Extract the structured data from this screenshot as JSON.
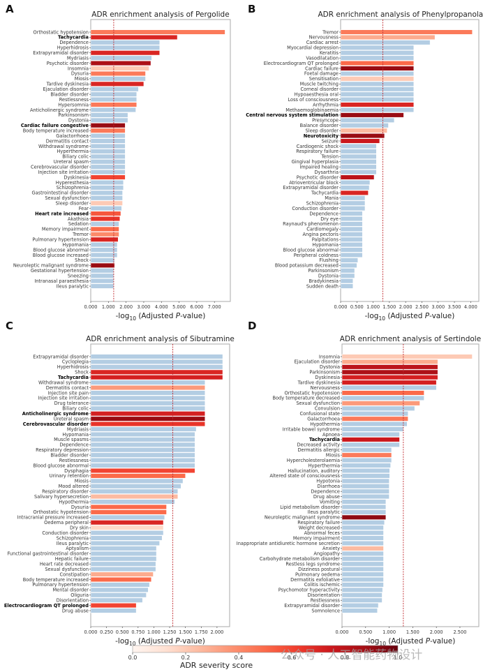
{
  "colorbar": {
    "label": "ADR severity score",
    "ticks": [
      "0.0",
      "0.2",
      "0.4",
      "0.6",
      "0.8",
      "1.0"
    ],
    "range": [
      0,
      1
    ],
    "cmap": "Reds"
  },
  "watermark": "公众号 · 人工智能药物设计",
  "chart_data": [
    {
      "panel_letter": "A",
      "type": "bar",
      "orientation": "horizontal",
      "title": "ADR enrichment analysis of Pergolide",
      "xlabel": "-log10 (Adjusted P-value)",
      "xlim": [
        0,
        7.9
      ],
      "xticks": [
        "0.000",
        "1.000",
        "2.000",
        "3.000",
        "4.000",
        "5.000",
        "6.000",
        "7.000"
      ],
      "xtick_values": [
        0,
        1,
        2,
        3,
        4,
        5,
        6,
        7
      ],
      "threshold": 1.3,
      "categories": [
        "Orthostatic hypotension",
        "Tachycardia",
        "Dependence",
        "Hyperhidrosis",
        "Extrapyramidal disorder",
        "Mydriasis",
        "Psychotic disorder",
        "Insomnia",
        "Dysuria",
        "Miosis",
        "Tardive dyskinesia",
        "Ejaculation disorder",
        "Bladder disorder",
        "Restlessness",
        "Hypersomnia",
        "Anticholinergic syndrome",
        "Parkinsonism",
        "Dystonia",
        "Cardiac failure congestive",
        "Body temperature increased",
        "Galactorrhoea",
        "Dermatitis contact",
        "Withdrawal syndrome",
        "Hyperthermia",
        "Biliary colic",
        "Ureteral spasm",
        "Cerebrovascular disorder",
        "Injection site irritation",
        "Dyskinesia",
        "Hyperesthesia",
        "Schizophrenia",
        "Gastrointestinal disorder",
        "Sexual dysfunction",
        "Sleep disorder",
        "Fear",
        "Heart rate increased",
        "Akathisia",
        "Sedation",
        "Memory impairment",
        "Tremor",
        "Pulmonary hypertension",
        "Hypomania",
        "Blood glucose abnormal",
        "Blood glucose increased",
        "Shock",
        "Neuroleptic malignant syndrome",
        "Gestational hypertension",
        "Sneezing",
        "Intranasal paraesthesia",
        "Ileus paralytic"
      ],
      "values": [
        7.6,
        4.9,
        3.9,
        3.9,
        3.9,
        3.45,
        3.4,
        3.3,
        3.1,
        3.1,
        3.0,
        2.7,
        2.6,
        2.6,
        2.6,
        2.55,
        2.1,
        2.1,
        1.95,
        1.95,
        1.95,
        1.95,
        1.95,
        1.95,
        1.95,
        1.95,
        1.95,
        1.95,
        1.95,
        1.85,
        1.85,
        1.8,
        1.8,
        1.8,
        1.75,
        1.7,
        1.65,
        1.6,
        1.6,
        1.6,
        1.55,
        1.5,
        1.5,
        1.5,
        1.35,
        1.35,
        1.3,
        1.3,
        1.3,
        1.3
      ],
      "severity": [
        0.45,
        0.7,
        null,
        null,
        0.7,
        null,
        0.85,
        0.2,
        0.45,
        null,
        0.7,
        null,
        null,
        null,
        0.45,
        null,
        null,
        null,
        0.9,
        0.45,
        null,
        null,
        null,
        null,
        null,
        null,
        null,
        null,
        0.6,
        null,
        null,
        null,
        null,
        0.2,
        null,
        0.55,
        0.65,
        null,
        0.5,
        0.4,
        0.7,
        null,
        null,
        null,
        null,
        0.9,
        null,
        null,
        null,
        null
      ],
      "bold": [
        "Tachycardia",
        "Cardiac failure congestive",
        "Heart rate increased"
      ]
    },
    {
      "panel_letter": "B",
      "type": "bar",
      "orientation": "horizontal",
      "title": "ADR enrichment analysis of Phenylpropanolamine",
      "xlabel": "-log10 (Adjusted P-value)",
      "xlim": [
        0,
        4.25
      ],
      "xticks": [
        "0.000",
        "0.500",
        "1.000",
        "1.500",
        "2.000",
        "2.500",
        "3.000",
        "3.500",
        "4.000"
      ],
      "xtick_values": [
        0,
        0.5,
        1,
        1.5,
        2,
        2.5,
        3,
        3.5,
        4
      ],
      "threshold": 1.3,
      "categories": [
        "Tremor",
        "Nervousness",
        "Cardiac arrest",
        "Myocardial depression",
        "Keratitis",
        "Vasodilatation",
        "Electrocardiogram QT prolonged",
        "Cardiac failure",
        "Foetal damage",
        "Sensitisation",
        "Muscle twitching",
        "Corneal disorder",
        "Hypoaesthesia oral",
        "Loss of consciousness",
        "Arrhythmia",
        "Methaemoglobinaemia",
        "Central nervous system stimulation",
        "Presyncope",
        "Balance disorder",
        "Sleep disorder",
        "Neurotoxicity",
        "Seizure",
        "Cardiogenic shock",
        "Respiratory failure",
        "Tension",
        "Gingival hyperplasia",
        "Impaired healing",
        "Dysarthria",
        "Psychotic disorder",
        "Atrioventricular block",
        "Extrapyramidal disorder",
        "Tachycardia",
        "Mania",
        "Schizophrenia",
        "Conduction disorder",
        "Dependence",
        "Dry eye",
        "Raynaud's phenomenon",
        "Cardiomegaly",
        "Angina pectoris",
        "Palpitations",
        "Hypomania",
        "Blood glucose abnormal",
        "Peripheral coldness",
        "Flushing",
        "Blood potassium decreased",
        "Parkinsonism",
        "Dystonia",
        "Bradykinesia",
        "Sudden death"
      ],
      "values": [
        4.05,
        2.9,
        2.75,
        2.25,
        2.25,
        2.25,
        2.25,
        2.25,
        2.25,
        2.25,
        2.25,
        2.25,
        2.25,
        2.25,
        2.25,
        2.25,
        1.94,
        1.65,
        1.47,
        1.43,
        1.35,
        1.2,
        1.1,
        1.1,
        1.1,
        1.1,
        1.1,
        1.1,
        1.03,
        0.9,
        0.88,
        0.85,
        0.75,
        0.75,
        0.75,
        0.67,
        0.67,
        0.67,
        0.67,
        0.67,
        0.67,
        0.67,
        0.67,
        0.67,
        0.53,
        0.5,
        0.43,
        0.43,
        0.38,
        0.38
      ],
      "severity": [
        0.45,
        0.3,
        null,
        null,
        null,
        null,
        0.5,
        0.9,
        null,
        0.2,
        null,
        null,
        null,
        null,
        0.7,
        null,
        0.9,
        null,
        null,
        0.25,
        0.9,
        0.75,
        null,
        null,
        null,
        null,
        null,
        null,
        0.8,
        null,
        null,
        0.7,
        null,
        null,
        null,
        null,
        null,
        null,
        null,
        null,
        null,
        null,
        null,
        null,
        null,
        null,
        null,
        null,
        null,
        null
      ],
      "bold": [
        "Central nervous system stimulation",
        "Neurotoxicity"
      ]
    },
    {
      "panel_letter": "C",
      "type": "bar",
      "orientation": "horizontal",
      "title": "ADR enrichment analysis of Sibutramine",
      "xlabel": "-log10 (Adjusted P-value)",
      "xlim": [
        0,
        2.2
      ],
      "xticks": [
        "0.000",
        "0.250",
        "0.500",
        "0.750",
        "1.000",
        "1.250",
        "1.500",
        "1.750",
        "2.000"
      ],
      "xtick_values": [
        0,
        0.25,
        0.5,
        0.75,
        1,
        1.25,
        1.5,
        1.75,
        2
      ],
      "threshold": 1.3,
      "categories": [
        "Extrapyramidal disorder",
        "Cycloplegia",
        "Hyperhidrosis",
        "Shock",
        "Tachycardia",
        "Withdrawal syndrome",
        "Dermatitis contact",
        "Injection site pain",
        "Injection site irritation",
        "Drug tolerance",
        "Biliary colic",
        "Anticholinergic syndrome",
        "Ureteral spasm",
        "Cerebrovascular disorder",
        "Mydriasis",
        "Hypomania",
        "Muscle spasms",
        "Dependence",
        "Respiratory depression",
        "Bladder disorder",
        "Restlessness",
        "Blood glucose abnormal",
        "Dysphagia",
        "Urinary retention",
        "Miosis",
        "Mood altered",
        "Respiratory disorder",
        "Salivary hypersecretion",
        "Hypothermia",
        "Dysuria",
        "Orthostatic hypotension",
        "Intracranial pressure increased",
        "Oedema peripheral",
        "Dry skin",
        "Conduction disorder",
        "Schizophrenia",
        "Ileus paralytic",
        "Aptyalism",
        "Functional gastrointestinal disorder",
        "Hepatic failure",
        "Heart rate decreased",
        "Sexual dysfunction",
        "Constipation",
        "Body temperature increased",
        "Pulmonary hypertension",
        "Mental disorder",
        "Oliguria",
        "Disorientation",
        "Electrocardiogram QT prolonged",
        "Drug abuse"
      ],
      "values": [
        2.09,
        2.09,
        2.09,
        2.09,
        2.09,
        1.81,
        1.81,
        1.81,
        1.81,
        1.81,
        1.81,
        1.81,
        1.81,
        1.81,
        1.67,
        1.65,
        1.65,
        1.65,
        1.65,
        1.65,
        1.65,
        1.65,
        1.65,
        1.5,
        1.46,
        1.43,
        1.38,
        1.38,
        1.33,
        1.2,
        1.2,
        1.17,
        1.15,
        1.15,
        1.15,
        1.13,
        1.09,
        1.04,
        1.04,
        1.04,
        1.03,
        1.03,
        0.99,
        0.96,
        0.93,
        0.91,
        0.88,
        0.82,
        0.72,
        0.72
      ],
      "severity": [
        null,
        null,
        null,
        0.7,
        0.72,
        null,
        0.35,
        null,
        null,
        null,
        null,
        0.72,
        0.9,
        0.65,
        null,
        null,
        null,
        null,
        null,
        null,
        null,
        null,
        0.6,
        0.5,
        null,
        null,
        null,
        0.25,
        null,
        0.5,
        0.5,
        null,
        0.7,
        0.15,
        null,
        null,
        null,
        null,
        null,
        null,
        null,
        null,
        0.3,
        0.5,
        null,
        null,
        null,
        null,
        0.6,
        null
      ],
      "bold": [
        "Tachycardia",
        "Anticholinergic syndrome",
        "Cerebrovascular disorder",
        "Electrocardiogram QT prolonged"
      ]
    },
    {
      "panel_letter": "D",
      "type": "bar",
      "orientation": "horizontal",
      "title": "ADR enrichment analysis of Sertindole",
      "xlabel": "-log10 (Adjusted P-value)",
      "xlim": [
        0,
        2.9
      ],
      "xticks": [
        "0.000",
        "0.500",
        "1.000",
        "1.500",
        "2.000",
        "2.500"
      ],
      "xtick_values": [
        0,
        0.5,
        1,
        1.5,
        2,
        2.5
      ],
      "threshold": 1.3,
      "categories": [
        "Insomnia",
        "Ejaculation disorder",
        "Dystonia",
        "Parkinsonism",
        "Dyskinesia",
        "Tardive dyskinesia",
        "Nervousness",
        "Orthostatic hypotension",
        "Body temperature decreased",
        "Sexual dysfunction",
        "Convulsion",
        "Confusional state",
        "Galactorrhoea",
        "Hypothermia",
        "Irritable bowel syndrome",
        "Apnoea",
        "Tachycardia",
        "Decreased activity",
        "Dermatitis allergic",
        "Miosis",
        "Hypercholesterolaemia",
        "Hyperthermia",
        "Hallucination, auditory",
        "Altered state of consciousness",
        "Hypotonia",
        "Diarrhoea",
        "Dependence",
        "Drug abuse",
        "Vomiting",
        "Lipid metabolism disorder",
        "Ileus paralytic",
        "Neuroleptic malignant syndrome",
        "Respiratory failure",
        "Weight decreased",
        "Abnormal feces",
        "Memory impairment",
        "Inappropriate antidiuretic hormone secretion",
        "Anxiety",
        "Angiopathy",
        "Carbohydrate metabolism disorder",
        "Restless legs syndrome",
        "Dizziness postural",
        "Pulmonary oedema",
        "Dermatitis exfoliative",
        "Colitis ischemic",
        "Psychomotor hyperactivity",
        "Disorientation",
        "Restlessness",
        "Extrapyramidal disorder",
        "Somnolence"
      ],
      "values": [
        2.76,
        2.03,
        2.03,
        2.03,
        2.03,
        2.0,
        2.0,
        1.74,
        1.74,
        1.65,
        1.54,
        1.4,
        1.4,
        1.38,
        1.3,
        1.22,
        1.22,
        1.22,
        1.05,
        1.05,
        1.05,
        1.03,
        1.01,
        1.01,
        1.0,
        1.0,
        1.0,
        1.0,
        0.93,
        0.93,
        0.93,
        0.93,
        0.9,
        0.88,
        0.88,
        0.88,
        0.88,
        0.88,
        0.88,
        0.88,
        0.88,
        0.88,
        0.88,
        0.88,
        0.88,
        0.86,
        0.85,
        0.85,
        0.77,
        0.75
      ],
      "severity": [
        0.2,
        0.3,
        0.8,
        0.85,
        0.72,
        0.72,
        null,
        0.5,
        null,
        0.35,
        null,
        null,
        0.45,
        null,
        null,
        null,
        0.75,
        null,
        null,
        0.45,
        null,
        null,
        null,
        null,
        null,
        null,
        null,
        null,
        null,
        null,
        null,
        0.92,
        null,
        null,
        null,
        null,
        null,
        0.25,
        null,
        null,
        null,
        null,
        null,
        null,
        null,
        null,
        null,
        null,
        null,
        null
      ],
      "bold": [
        "Tachycardia"
      ]
    }
  ]
}
